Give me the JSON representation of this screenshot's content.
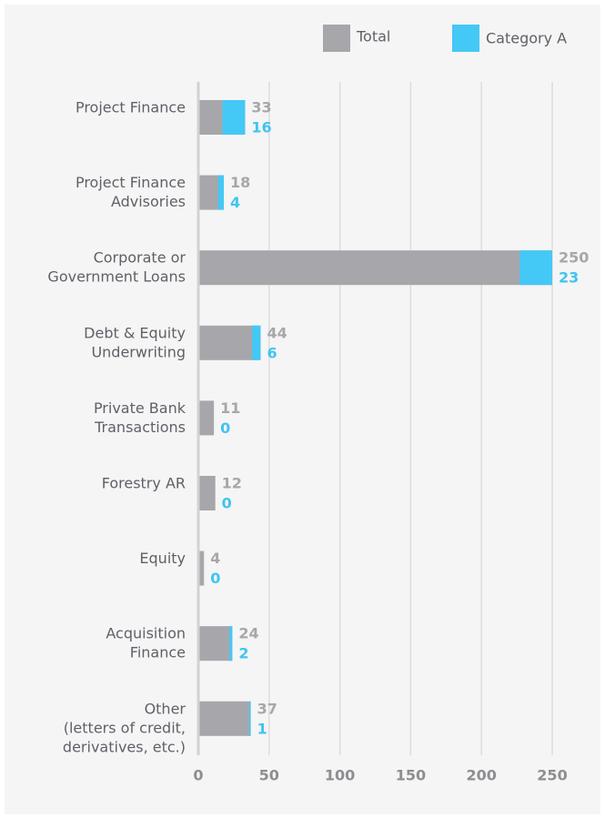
{
  "chart_data": {
    "type": "bar",
    "orientation": "horizontal",
    "categories": [
      [
        "Project Finance"
      ],
      [
        "Project Finance",
        "Advisories"
      ],
      [
        "Corporate or",
        "Government Loans"
      ],
      [
        "Debt & Equity",
        "Underwriting"
      ],
      [
        "Private Bank",
        "Transactions"
      ],
      [
        "Forestry AR"
      ],
      [
        "Equity"
      ],
      [
        "Acquisition",
        "Finance"
      ],
      [
        "Other",
        "(letters of credit,",
        "derivatives, etc.)"
      ]
    ],
    "series": [
      {
        "name": "Total",
        "color": "#a7a7ab",
        "label_color": "#a7a7ab",
        "values": [
          33,
          18,
          250,
          44,
          11,
          12,
          4,
          24,
          37
        ]
      },
      {
        "name": "Category A",
        "color": "#44c8f5",
        "label_color": "#3fc4f2",
        "values": [
          16,
          4,
          23,
          6,
          0,
          0,
          0,
          2,
          1
        ]
      }
    ],
    "xlim": [
      0,
      250
    ],
    "xticks": [
      0,
      50,
      100,
      150,
      200,
      250
    ],
    "grid": true
  }
}
